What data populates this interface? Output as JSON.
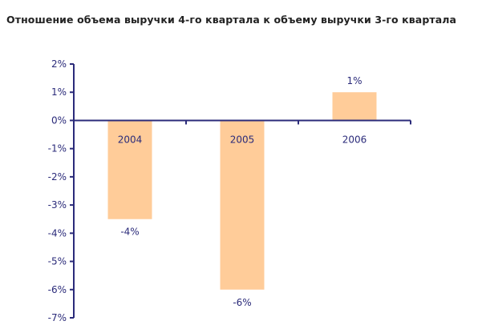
{
  "chart_data": {
    "type": "bar",
    "title": "Отношение объема выручки 4-го квартала к объему выручки 3-го квартала",
    "categories": [
      "2004",
      "2005",
      "2006"
    ],
    "values": [
      -3.5,
      -6.0,
      1.0
    ],
    "data_labels": [
      "-4%",
      "-6%",
      "1%"
    ],
    "yticks": [
      "2%",
      "1%",
      "0%",
      "-1%",
      "-2%",
      "-3%",
      "-4%",
      "-5%",
      "-6%",
      "-7%"
    ],
    "ylim": [
      -7,
      2
    ],
    "xlabel": "",
    "ylabel": "",
    "grid": false,
    "legend": "none"
  },
  "colors": {
    "bar": "#ffcc99",
    "axis": "#2b2b7a",
    "text": "#2b2b7a",
    "title": "#222222"
  }
}
